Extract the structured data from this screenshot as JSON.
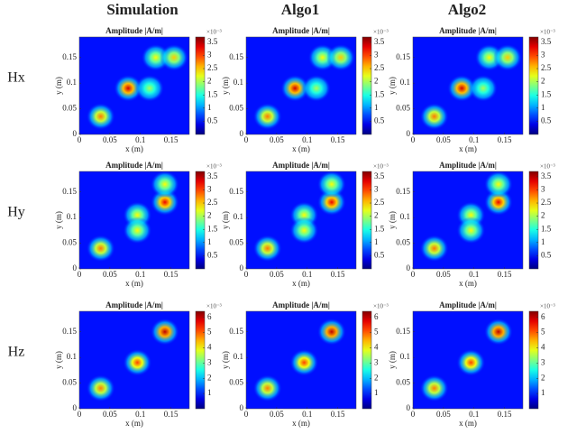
{
  "columns": [
    "Simulation",
    "Algo1",
    "Algo2"
  ],
  "panel_title": "Amplitude |A/m|",
  "x_label": "x (m)",
  "y_label": "y (m)",
  "multiplier": "×10⁻³",
  "xlim": [
    0,
    0.18
  ],
  "ylim": [
    0,
    0.19
  ],
  "xticks": [
    0,
    0.05,
    0.1,
    0.15
  ],
  "yticks": [
    0,
    0.05,
    0.1,
    0.15
  ],
  "rows": [
    {
      "label": "Hx",
      "type": "heatmap",
      "clim": [
        0,
        3.7
      ],
      "cticks": [
        0.5,
        1,
        1.5,
        2,
        2.5,
        3,
        3.5
      ],
      "peaks": [
        {
          "x": 0.035,
          "y": 0.035,
          "value": 2.8
        },
        {
          "x": 0.08,
          "y": 0.09,
          "value": 3.4
        },
        {
          "x": 0.115,
          "y": 0.09,
          "value": 2.0
        },
        {
          "x": 0.125,
          "y": 0.15,
          "value": 2.3
        },
        {
          "x": 0.155,
          "y": 0.15,
          "value": 2.5
        }
      ]
    },
    {
      "label": "Hy",
      "type": "heatmap",
      "clim": [
        0,
        3.7
      ],
      "cticks": [
        0.5,
        1,
        1.5,
        2,
        2.5,
        3,
        3.5
      ],
      "peaks": [
        {
          "x": 0.035,
          "y": 0.04,
          "value": 2.8
        },
        {
          "x": 0.095,
          "y": 0.105,
          "value": 2.3
        },
        {
          "x": 0.095,
          "y": 0.075,
          "value": 2.3
        },
        {
          "x": 0.14,
          "y": 0.13,
          "value": 3.3
        },
        {
          "x": 0.14,
          "y": 0.165,
          "value": 2.3
        }
      ]
    },
    {
      "label": "Hz",
      "type": "heatmap",
      "clim": [
        0,
        6.4
      ],
      "cticks": [
        1,
        2,
        3,
        4,
        5,
        6
      ],
      "peaks": [
        {
          "x": 0.035,
          "y": 0.04,
          "value": 4.8
        },
        {
          "x": 0.095,
          "y": 0.09,
          "value": 5.2
        },
        {
          "x": 0.14,
          "y": 0.15,
          "value": 6.0
        }
      ]
    }
  ]
}
